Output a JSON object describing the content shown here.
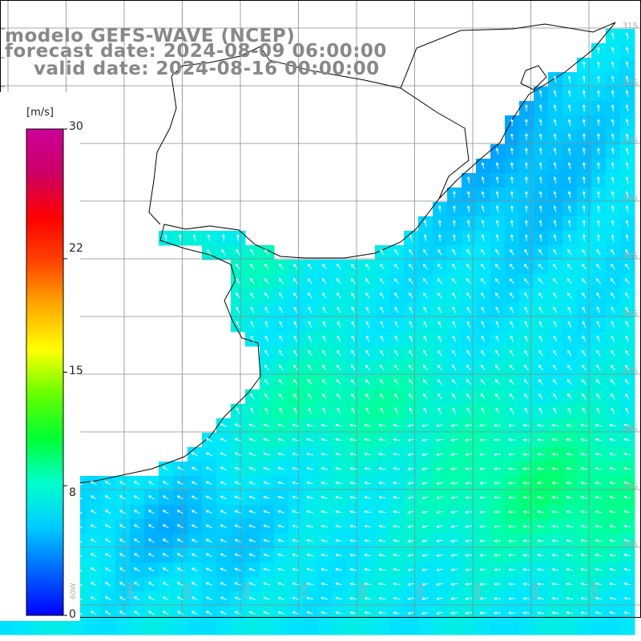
{
  "header": {
    "line1": "modelo GEFS-WAVE (NCEP)",
    "line2": "forecast date: 2024-08-09 06:00:00",
    "line3": "valid date: 2024-08-16 00:00:00"
  },
  "colorbar": {
    "unit": "[m/s]",
    "ticks": [
      {
        "label": "30",
        "value": 30
      },
      {
        "label": "22",
        "value": 22
      },
      {
        "label": "15",
        "value": 15
      },
      {
        "label": "8",
        "value": 8
      },
      {
        "label": "0",
        "value": 0
      }
    ],
    "colors": [
      "#0000ff",
      "#0066ff",
      "#00ccff",
      "#00ffcc",
      "#00ff33",
      "#66ff00",
      "#ffff00",
      "#ffaa00",
      "#ff4400",
      "#ff0000",
      "#cc0066",
      "#cc0099"
    ]
  },
  "lat_labels": [
    "31S",
    "32S",
    "33S",
    "34S",
    "35S",
    "36S",
    "37S",
    "38S",
    "39S",
    "40S"
  ],
  "lon_labels": [
    "60W",
    "58W",
    "56W",
    "54W",
    "52W",
    "50W",
    "48W",
    "46W",
    "44W",
    "42W"
  ],
  "field": {
    "variable": "wind speed",
    "typical_range": [
      6,
      12
    ]
  }
}
